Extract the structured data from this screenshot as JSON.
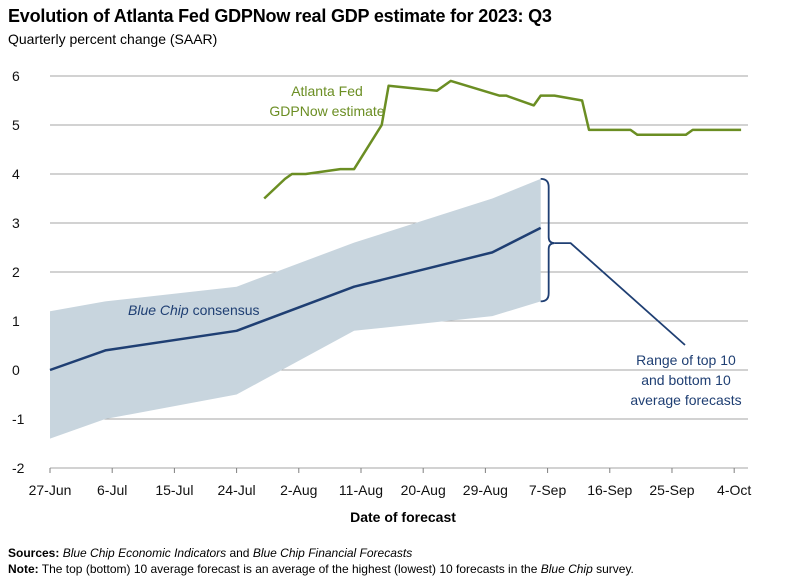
{
  "chart_data": {
    "type": "line",
    "title": "Evolution of Atlanta Fed GDPNow real GDP estimate for 2023: Q3",
    "subtitle": "Quarterly percent change (SAAR)",
    "xlabel": "Date of forecast",
    "ylabel": "",
    "ylim": [
      -2,
      6
    ],
    "xlim": [
      "2023-06-27",
      "2023-10-06"
    ],
    "grid": "horizontal",
    "yticks": [
      "6",
      "5",
      "4",
      "3",
      "2",
      "1",
      "0",
      "-1",
      "-2"
    ],
    "xticks": [
      {
        "date": "2023-06-27",
        "label": "27-Jun"
      },
      {
        "date": "2023-07-06",
        "label": "6-Jul"
      },
      {
        "date": "2023-07-15",
        "label": "15-Jul"
      },
      {
        "date": "2023-07-24",
        "label": "24-Jul"
      },
      {
        "date": "2023-08-02",
        "label": "2-Aug"
      },
      {
        "date": "2023-08-11",
        "label": "11-Aug"
      },
      {
        "date": "2023-08-20",
        "label": "20-Aug"
      },
      {
        "date": "2023-08-29",
        "label": "29-Aug"
      },
      {
        "date": "2023-09-07",
        "label": "7-Sep"
      },
      {
        "date": "2023-09-16",
        "label": "16-Sep"
      },
      {
        "date": "2023-09-25",
        "label": "25-Sep"
      },
      {
        "date": "2023-10-04",
        "label": "4-Oct"
      }
    ],
    "series": [
      {
        "name": "Atlanta Fed GDPNow estimate",
        "color": "#6b8e23",
        "points": [
          {
            "x": "2023-07-28",
            "y": 3.5
          },
          {
            "x": "2023-07-31",
            "y": 3.9
          },
          {
            "x": "2023-08-01",
            "y": 4.0
          },
          {
            "x": "2023-08-03",
            "y": 4.0
          },
          {
            "x": "2023-08-08",
            "y": 4.1
          },
          {
            "x": "2023-08-10",
            "y": 4.1
          },
          {
            "x": "2023-08-14",
            "y": 5.0
          },
          {
            "x": "2023-08-15",
            "y": 5.8
          },
          {
            "x": "2023-08-22",
            "y": 5.7
          },
          {
            "x": "2023-08-24",
            "y": 5.9
          },
          {
            "x": "2023-08-31",
            "y": 5.6
          },
          {
            "x": "2023-09-01",
            "y": 5.6
          },
          {
            "x": "2023-09-05",
            "y": 5.4
          },
          {
            "x": "2023-09-06",
            "y": 5.6
          },
          {
            "x": "2023-09-08",
            "y": 5.6
          },
          {
            "x": "2023-09-12",
            "y": 5.5
          },
          {
            "x": "2023-09-13",
            "y": 4.9
          },
          {
            "x": "2023-09-19",
            "y": 4.9
          },
          {
            "x": "2023-09-20",
            "y": 4.8
          },
          {
            "x": "2023-09-27",
            "y": 4.8
          },
          {
            "x": "2023-09-28",
            "y": 4.9
          },
          {
            "x": "2023-10-05",
            "y": 4.9
          }
        ]
      },
      {
        "name": "Blue Chip consensus",
        "color": "#1f3f73",
        "points": [
          {
            "x": "2023-06-27",
            "y": 0.0
          },
          {
            "x": "2023-07-05",
            "y": 0.4
          },
          {
            "x": "2023-07-24",
            "y": 0.8
          },
          {
            "x": "2023-08-10",
            "y": 1.7
          },
          {
            "x": "2023-08-30",
            "y": 2.4
          },
          {
            "x": "2023-09-06",
            "y": 2.9
          }
        ]
      }
    ],
    "band": {
      "name": "Range of top 10 and bottom 10 average forecasts",
      "color": "#c8d5de",
      "points": [
        {
          "x": "2023-06-27",
          "low": -1.4,
          "high": 1.2
        },
        {
          "x": "2023-07-05",
          "low": -1.0,
          "high": 1.4
        },
        {
          "x": "2023-07-24",
          "low": -0.5,
          "high": 1.7
        },
        {
          "x": "2023-08-10",
          "low": 0.8,
          "high": 2.6
        },
        {
          "x": "2023-08-30",
          "low": 1.1,
          "high": 3.5
        },
        {
          "x": "2023-09-06",
          "low": 1.4,
          "high": 3.9
        }
      ]
    },
    "annotations": {
      "gdpnow_label": [
        "Atlanta Fed",
        "GDPNow estimate"
      ],
      "bluechip_label": "Blue Chip consensus",
      "range_label": [
        "Range of top 10",
        "and bottom 10",
        "average forecasts"
      ]
    }
  },
  "sources": {
    "sources_label": "Sources:",
    "sources_text_1": "Blue Chip Economic Indicators",
    "sources_and": " and ",
    "sources_text_2": "Blue Chip Financial Forecasts",
    "note_label": "Note:",
    "note_text_1": " The top (bottom) 10 average forecast is an average of the highest (lowest) 10 forecasts in the ",
    "note_text_2": "Blue Chip",
    "note_text_3": " survey."
  }
}
